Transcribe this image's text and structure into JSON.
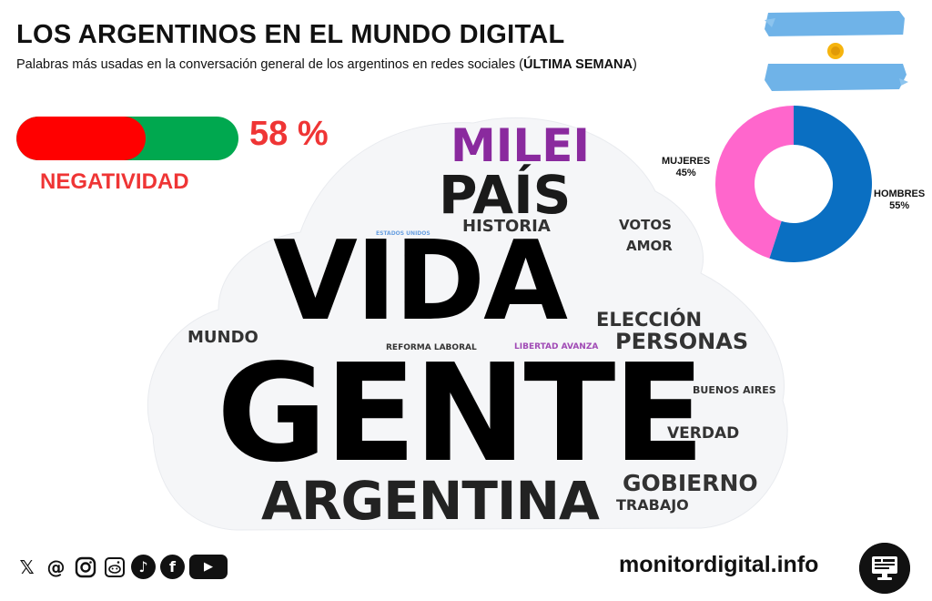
{
  "header": {
    "title": "LOS ARGENTINOS EN EL MUNDO DIGITAL",
    "subtitle_prefix": "Palabras más usadas en la conversación general de los argentinos en redes sociales (",
    "subtitle_bold": "ÚLTIMA SEMANA",
    "subtitle_suffix": ")"
  },
  "negativity": {
    "value": "58 %",
    "fraction": 0.58,
    "label": "NEGATIVIDAD",
    "colors": {
      "negative": "#ff0000",
      "positive": "#00a84f",
      "text": "#ef3535"
    }
  },
  "gender": {
    "women_label": "MUJERES",
    "women_value": "45%",
    "men_label": "HOMBRES",
    "men_value": "55%",
    "women_fraction": 0.45,
    "men_fraction": 0.55,
    "colors": {
      "women": "#ff66cc",
      "men": "#0a6fc2"
    }
  },
  "word_cloud": {
    "words": [
      {
        "text": "MILEI",
        "color": "#8a2a9e"
      },
      {
        "text": "PAÍS",
        "color": "#1a1a1a"
      },
      {
        "text": "HISTORIA",
        "color": "#333333"
      },
      {
        "text": "VOTOS",
        "color": "#333333"
      },
      {
        "text": "AMOR",
        "color": "#333333"
      },
      {
        "text": "ESTADOS UNIDOS",
        "color": "#6aa0e0"
      },
      {
        "text": "VIDA",
        "color": "#000000"
      },
      {
        "text": "ELECCIÓN",
        "color": "#333333"
      },
      {
        "text": "MUNDO",
        "color": "#333333"
      },
      {
        "text": "PERSONAS",
        "color": "#333333"
      },
      {
        "text": "REFORMA LABORAL",
        "color": "#333333"
      },
      {
        "text": "LIBERTAD AVANZA",
        "color": "#a04ab5"
      },
      {
        "text": "GENTE",
        "color": "#000000"
      },
      {
        "text": "BUENOS AIRES",
        "color": "#333333"
      },
      {
        "text": "VERDAD",
        "color": "#333333"
      },
      {
        "text": "GOBIERNO",
        "color": "#333333"
      },
      {
        "text": "ARGENTINA",
        "color": "#222222"
      },
      {
        "text": "TRABAJO",
        "color": "#333333"
      }
    ]
  },
  "footer": {
    "social_icons": [
      "x-icon",
      "threads-icon",
      "instagram-icon",
      "reddit-icon",
      "tiktok-icon",
      "facebook-icon",
      "youtube-icon"
    ],
    "website": "monitordigital.info"
  }
}
